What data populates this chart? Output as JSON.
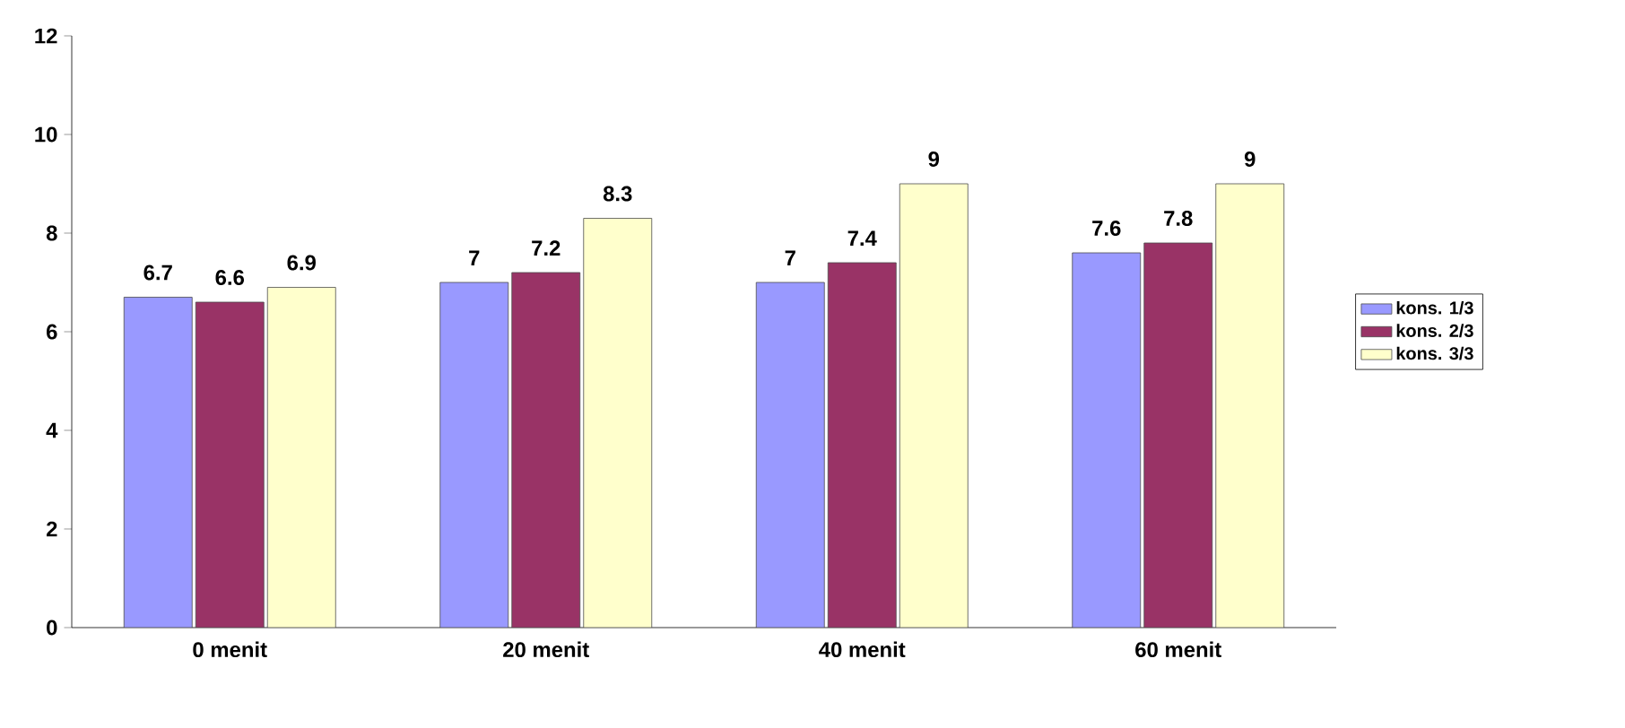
{
  "chart_data": {
    "type": "bar",
    "categories": [
      "0 menit",
      "20 menit",
      "40 menit",
      "60 menit"
    ],
    "series": [
      {
        "name": "kons. 1/3",
        "color": "#9999ff",
        "values": [
          6.7,
          7,
          7,
          7.6
        ]
      },
      {
        "name": "kons. 2/3",
        "color": "#993366",
        "values": [
          6.6,
          7.2,
          7.4,
          7.8
        ]
      },
      {
        "name": "kons. 3/3",
        "color": "#ffffcc",
        "values": [
          6.9,
          8.3,
          9,
          9
        ]
      }
    ],
    "ylim": [
      0,
      12
    ],
    "yticks": [
      0,
      2,
      4,
      6,
      8,
      10,
      12
    ],
    "data_labels": true,
    "legend": "right",
    "grid": false
  }
}
